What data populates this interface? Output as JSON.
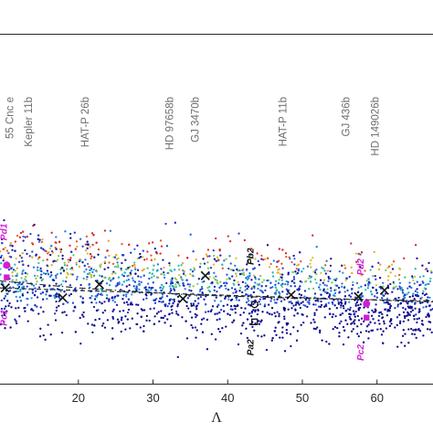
{
  "chart_data": {
    "type": "scatter",
    "xlabel": "Λ",
    "ylabel": "",
    "title": "",
    "xlim": [
      9.5,
      67.5
    ],
    "ylim": [
      0,
      1
    ],
    "xticks": [
      20,
      30,
      40,
      50,
      60
    ],
    "grid": false,
    "colors": {
      "scatter_palette": [
        "#0a0a8c",
        "#1a1aaf",
        "#1f3fd6",
        "#2b73e6",
        "#19a2d8",
        "#32c2b0",
        "#7ac95a",
        "#cfc535",
        "#f2a32a",
        "#e8562b",
        "#d9272a"
      ],
      "highlight": "#d11ed6",
      "marker": "#111111"
    },
    "planet_annotations": [
      {
        "label": "55 Cnc e",
        "x": 10.8
      },
      {
        "label": "Kepler 11b",
        "x": 13.3
      },
      {
        "label": "HAT-P 26b",
        "x": 20.9
      },
      {
        "label": "HD 97658b",
        "x": 32.2
      },
      {
        "label": "GJ 3470b",
        "x": 35.6
      },
      {
        "label": "HAT-P 11b",
        "x": 47.4
      },
      {
        "label": "GJ 436b",
        "x": 55.8
      },
      {
        "label": "HD 149026b",
        "x": 59.7
      }
    ],
    "population_labels": [
      {
        "label": "Pd1",
        "x": 10.0,
        "y": 0.435,
        "color": "#d11ed6"
      },
      {
        "label": "Pc1",
        "x": 10.0,
        "y": 0.19,
        "color": "#d11ed6"
      },
      {
        "label": "Pb2",
        "x": 43.0,
        "y": 0.365,
        "color": "#111111"
      },
      {
        "label": "Pa2",
        "x": 43.0,
        "y": 0.105,
        "color": "#111111"
      },
      {
        "label": "Pd2",
        "x": 57.8,
        "y": 0.335,
        "color": "#d11ed6"
      },
      {
        "label": "Pc2",
        "x": 57.8,
        "y": 0.09,
        "color": "#d11ed6"
      }
    ],
    "highlight_points": [
      {
        "x": 10.4,
        "y": 0.34
      },
      {
        "x": 10.4,
        "y": 0.305
      },
      {
        "x": 58.6,
        "y": 0.23
      },
      {
        "x": 58.6,
        "y": 0.19
      }
    ],
    "x_markers": [
      {
        "x": 10.2,
        "y": 0.275
      },
      {
        "x": 17.9,
        "y": 0.247
      },
      {
        "x": 22.8,
        "y": 0.285
      },
      {
        "x": 34.0,
        "y": 0.244
      },
      {
        "x": 37.0,
        "y": 0.31
      },
      {
        "x": 48.5,
        "y": 0.255
      },
      {
        "x": 57.5,
        "y": 0.25
      },
      {
        "x": 61.0,
        "y": 0.268
      }
    ],
    "open_markers": [
      {
        "shape": "circle",
        "x": 43.6,
        "y": 0.228
      },
      {
        "shape": "square",
        "x": 43.6,
        "y": 0.178
      }
    ],
    "trend_lines": [
      {
        "style": "dashed",
        "points": [
          [
            9.5,
            0.275
          ],
          [
            67.5,
            0.235
          ]
        ]
      },
      {
        "style": "dashdot",
        "points": [
          [
            9.5,
            0.295
          ],
          [
            20.0,
            0.275
          ],
          [
            35.0,
            0.255
          ],
          [
            50.0,
            0.245
          ],
          [
            67.5,
            0.238
          ]
        ]
      }
    ],
    "point_cloud": {
      "count": 2100,
      "x_range": [
        9.5,
        67.5
      ],
      "y_center_start": 0.31,
      "y_center_end": 0.235,
      "y_spread_start": 0.14,
      "y_spread_end": 0.11
    }
  }
}
